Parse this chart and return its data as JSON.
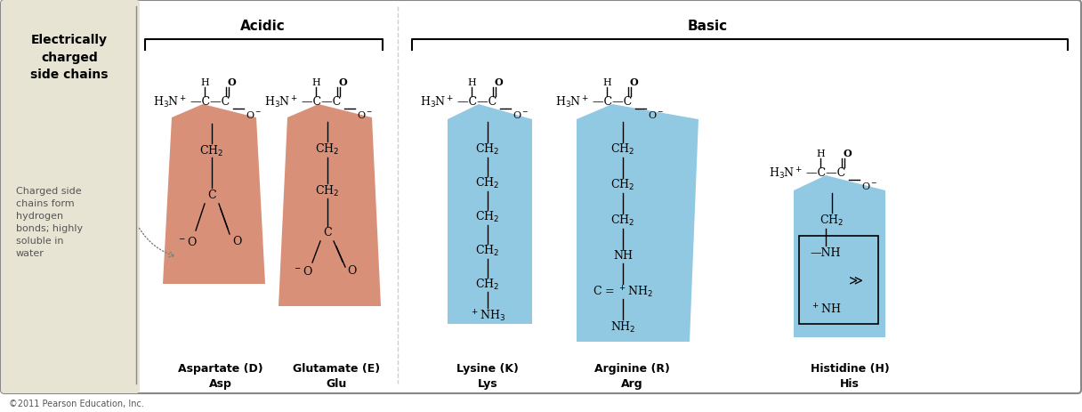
{
  "background_color": "#ffffff",
  "left_panel_color": "#e8e4d4",
  "border_color": "#888888",
  "salmon_color": "#d4846a",
  "blue_color": "#85c4e0",
  "title_left": "Electrically\ncharged\nside chains",
  "label_acidic": "Acidic",
  "label_basic": "Basic",
  "annotation_text": "Charged side\nchains form\nhydrogen\nbonds; highly\nsoluble in\nwater",
  "copyright": "©2011 Pearson Education, Inc.",
  "fig_width": 12.16,
  "fig_height": 4.64
}
